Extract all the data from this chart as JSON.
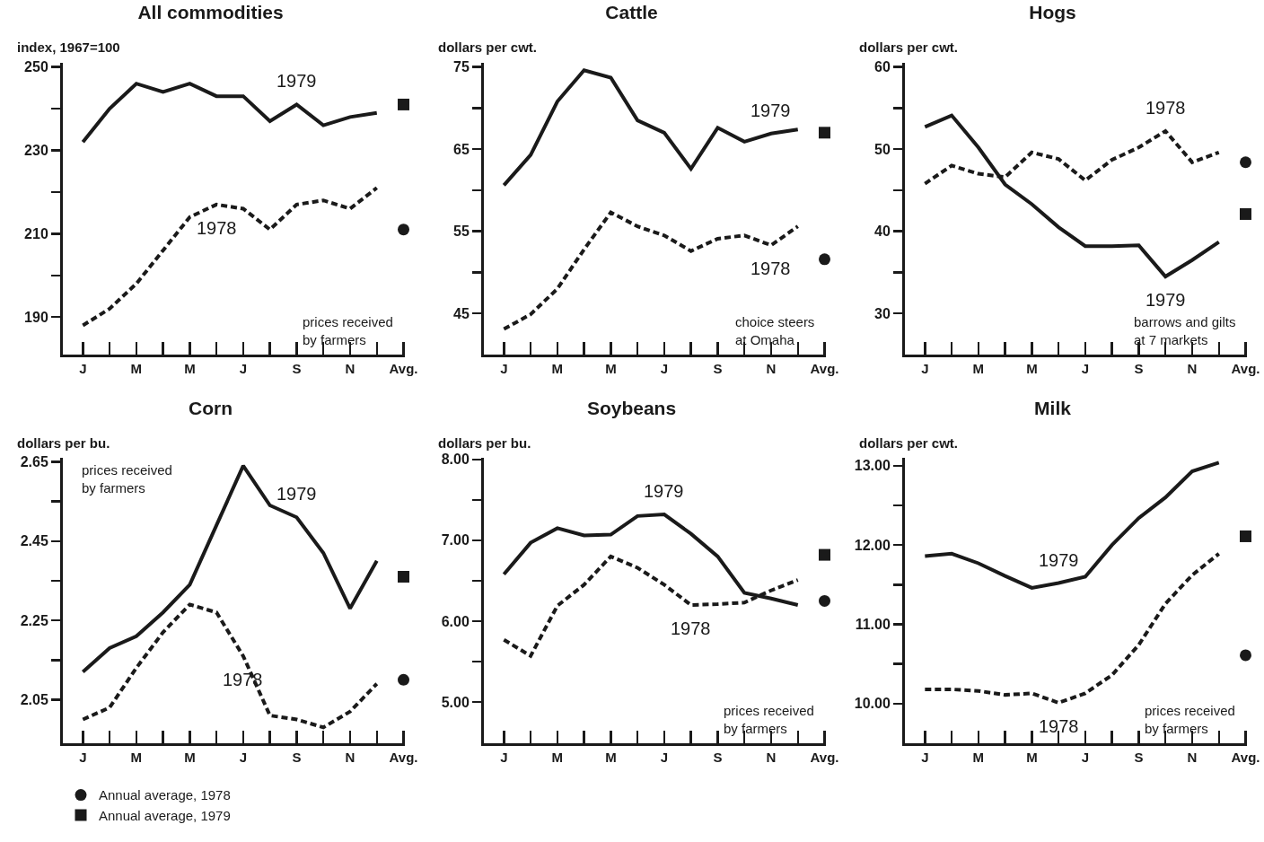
{
  "chart_data": [
    {
      "type": "line",
      "title": "All commodities",
      "ylabel": "index, 1967=100",
      "categories": [
        "J",
        null,
        "M",
        null,
        "M",
        null,
        "J",
        null,
        "S",
        null,
        "N",
        null,
        "Avg."
      ],
      "ylim": [
        181,
        251
      ],
      "yticks": [
        190,
        {
          "value": 200,
          "label": null
        },
        210,
        {
          "value": 220,
          "label": null
        },
        230,
        {
          "value": 240,
          "label": null
        },
        250
      ],
      "grid": false,
      "legend": false,
      "series": [
        {
          "name": "1979",
          "color": "#1a1a1a",
          "line_style": "solid",
          "values": [
            232,
            240,
            246,
            244,
            246,
            243,
            243,
            237,
            241,
            236,
            238,
            239,
            null
          ]
        },
        {
          "name": "1978",
          "color": "#1a1a1a",
          "line_style": "dashed",
          "values": [
            188,
            192,
            198,
            206,
            214,
            217,
            216,
            211,
            217,
            218,
            216,
            221,
            null
          ]
        },
        {
          "type": "scatter",
          "marker": "circle",
          "color": "#1a1a1a",
          "values": [
            null,
            null,
            null,
            null,
            null,
            null,
            null,
            null,
            null,
            null,
            null,
            null,
            211
          ]
        },
        {
          "type": "scatter",
          "marker": "square",
          "color": "#1a1a1a",
          "values": [
            null,
            null,
            null,
            null,
            null,
            null,
            null,
            null,
            null,
            null,
            null,
            null,
            241
          ]
        }
      ],
      "annotations": [
        "prices received\nby farmers"
      ]
    },
    {
      "type": "line",
      "title": "Cattle",
      "ylabel": "dollars per cwt.",
      "categories": [
        "J",
        null,
        "M",
        null,
        "M",
        null,
        "J",
        null,
        "S",
        null,
        "N",
        null,
        "Avg."
      ],
      "ylim": [
        40,
        75.5
      ],
      "yticks": [
        45,
        {
          "value": 50,
          "label": null
        },
        55,
        {
          "value": 60,
          "label": null
        },
        65,
        {
          "value": 70,
          "label": null
        },
        75
      ],
      "grid": false,
      "legend": false,
      "series": [
        {
          "name": "1979",
          "color": "#1a1a1a",
          "line_style": "solid",
          "values": [
            60.6,
            64.3,
            70.8,
            74.6,
            73.7,
            68.5,
            67,
            62.6,
            67.6,
            65.9,
            66.9,
            67.4,
            null
          ]
        },
        {
          "name": "1978",
          "color": "#1a1a1a",
          "line_style": "dashed",
          "values": [
            43.1,
            44.9,
            48,
            52.8,
            57.3,
            55.6,
            54.5,
            52.6,
            54.1,
            54.5,
            53.3,
            55.6,
            null
          ]
        },
        {
          "type": "scatter",
          "marker": "circle",
          "color": "#1a1a1a",
          "values": [
            null,
            null,
            null,
            null,
            null,
            null,
            null,
            null,
            null,
            null,
            null,
            null,
            51.6
          ]
        },
        {
          "type": "scatter",
          "marker": "square",
          "color": "#1a1a1a",
          "values": [
            null,
            null,
            null,
            null,
            null,
            null,
            null,
            null,
            null,
            null,
            null,
            null,
            67
          ]
        }
      ],
      "annotations": [
        "choice steers\nat Omaha"
      ]
    },
    {
      "type": "line",
      "title": "Hogs",
      "ylabel": "dollars per cwt.",
      "categories": [
        "J",
        null,
        "M",
        null,
        "M",
        null,
        "J",
        null,
        "S",
        null,
        "N",
        null,
        "Avg."
      ],
      "ylim": [
        25,
        60.5
      ],
      "yticks": [
        30,
        {
          "value": 35,
          "label": null
        },
        40,
        {
          "value": 45,
          "label": null
        },
        50,
        {
          "value": 55,
          "label": null
        },
        60
      ],
      "grid": false,
      "legend": false,
      "series": [
        {
          "name": "1979",
          "color": "#1a1a1a",
          "line_style": "solid",
          "values": [
            52.7,
            54.1,
            50.2,
            45.7,
            43.3,
            40.5,
            38.2,
            38.2,
            38.3,
            34.5,
            36.5,
            38.7,
            null
          ]
        },
        {
          "name": "1978",
          "color": "#1a1a1a",
          "line_style": "dashed",
          "values": [
            45.8,
            48,
            47,
            46.6,
            49.6,
            48.8,
            46.2,
            48.7,
            50.2,
            52.2,
            48.4,
            49.6,
            null
          ]
        },
        {
          "type": "scatter",
          "marker": "circle",
          "color": "#1a1a1a",
          "values": [
            null,
            null,
            null,
            null,
            null,
            null,
            null,
            null,
            null,
            null,
            null,
            null,
            48.4
          ]
        },
        {
          "type": "scatter",
          "marker": "square",
          "color": "#1a1a1a",
          "values": [
            null,
            null,
            null,
            null,
            null,
            null,
            null,
            null,
            null,
            null,
            null,
            null,
            42.1
          ]
        }
      ],
      "annotations": [
        "barrows and gilts\nat 7 markets"
      ]
    },
    {
      "type": "line",
      "title": "Corn",
      "ylabel": "dollars per bu.",
      "categories": [
        "J",
        null,
        "M",
        null,
        "M",
        null,
        "J",
        null,
        "S",
        null,
        "N",
        null,
        "Avg."
      ],
      "ylim": [
        1.94,
        2.66
      ],
      "yticks": [
        2.05,
        {
          "value": 2.15,
          "label": null
        },
        2.25,
        {
          "value": 2.35,
          "label": null
        },
        2.45,
        {
          "value": 2.55,
          "label": null
        },
        2.65
      ],
      "grid": false,
      "legend": "bottom left",
      "series": [
        {
          "name": "1979",
          "color": "#1a1a1a",
          "line_style": "solid",
          "values": [
            2.12,
            2.18,
            2.21,
            2.27,
            2.34,
            2.49,
            2.64,
            2.54,
            2.51,
            2.42,
            2.28,
            2.4,
            null
          ]
        },
        {
          "name": "1978",
          "color": "#1a1a1a",
          "line_style": "dashed",
          "values": [
            2.0,
            2.03,
            2.13,
            2.22,
            2.29,
            2.27,
            2.16,
            2.01,
            2.0,
            1.98,
            2.02,
            2.09,
            null
          ]
        },
        {
          "type": "scatter",
          "marker": "circle",
          "color": "#1a1a1a",
          "name": "Annual average, 1978",
          "values": [
            null,
            null,
            null,
            null,
            null,
            null,
            null,
            null,
            null,
            null,
            null,
            null,
            2.1
          ]
        },
        {
          "type": "scatter",
          "marker": "square",
          "color": "#1a1a1a",
          "name": "Annual average, 1979",
          "values": [
            null,
            null,
            null,
            null,
            null,
            null,
            null,
            null,
            null,
            null,
            null,
            null,
            2.36
          ]
        }
      ],
      "annotations": [
        "prices received\nby farmers"
      ]
    },
    {
      "type": "line",
      "title": "Soybeans",
      "ylabel": "dollars per bu.",
      "categories": [
        "J",
        null,
        "M",
        null,
        "M",
        null,
        "J",
        null,
        "S",
        null,
        "N",
        null,
        "Avg."
      ],
      "ylim": [
        4.49,
        8.02
      ],
      "yticks": [
        {
          "value": 5,
          "label": "5.00"
        },
        {
          "value": 5.5,
          "label": null
        },
        {
          "value": 6,
          "label": "6.00"
        },
        {
          "value": 6.5,
          "label": null
        },
        {
          "value": 7,
          "label": "7.00"
        },
        {
          "value": 7.5,
          "label": null
        },
        {
          "value": 8,
          "label": "8.00"
        }
      ],
      "grid": false,
      "legend": false,
      "series": [
        {
          "name": "1979",
          "color": "#1a1a1a",
          "line_style": "solid",
          "values": [
            6.58,
            6.97,
            7.15,
            7.06,
            7.07,
            7.3,
            7.32,
            7.08,
            6.8,
            6.35,
            6.28,
            6.2,
            null
          ]
        },
        {
          "name": "1978",
          "color": "#1a1a1a",
          "line_style": "dashed",
          "values": [
            5.77,
            5.57,
            6.19,
            6.45,
            6.8,
            6.66,
            6.45,
            6.2,
            6.21,
            6.23,
            6.38,
            6.51,
            null
          ]
        },
        {
          "type": "scatter",
          "marker": "circle",
          "color": "#1a1a1a",
          "values": [
            null,
            null,
            null,
            null,
            null,
            null,
            null,
            null,
            null,
            null,
            null,
            null,
            6.25
          ]
        },
        {
          "type": "scatter",
          "marker": "square",
          "color": "#1a1a1a",
          "values": [
            null,
            null,
            null,
            null,
            null,
            null,
            null,
            null,
            null,
            null,
            null,
            null,
            6.82
          ]
        }
      ],
      "annotations": [
        "prices received\nby farmers"
      ]
    },
    {
      "type": "line",
      "title": "Milk",
      "ylabel": "dollars per cwt.",
      "categories": [
        "J",
        null,
        "M",
        null,
        "M",
        null,
        "J",
        null,
        "S",
        null,
        "N",
        null,
        "Avg."
      ],
      "ylim": [
        9.5,
        13.1
      ],
      "yticks": [
        {
          "value": 10,
          "label": "10.00"
        },
        {
          "value": 10.5,
          "label": null
        },
        {
          "value": 11,
          "label": "11.00"
        },
        {
          "value": 11.5,
          "label": null
        },
        {
          "value": 12,
          "label": "12.00"
        },
        {
          "value": 12.5,
          "label": null
        },
        {
          "value": 13,
          "label": "13.00"
        }
      ],
      "grid": false,
      "legend": false,
      "series": [
        {
          "name": "1979",
          "color": "#1a1a1a",
          "line_style": "solid",
          "values": [
            11.86,
            11.89,
            11.77,
            11.61,
            11.46,
            11.52,
            11.6,
            12.0,
            12.34,
            12.6,
            12.93,
            13.04,
            null
          ]
        },
        {
          "name": "1978",
          "color": "#1a1a1a",
          "line_style": "dashed",
          "values": [
            10.18,
            10.18,
            10.16,
            10.11,
            10.13,
            10.01,
            10.13,
            10.36,
            10.74,
            11.26,
            11.62,
            11.89,
            null
          ]
        },
        {
          "type": "scatter",
          "marker": "circle",
          "color": "#1a1a1a",
          "values": [
            null,
            null,
            null,
            null,
            null,
            null,
            null,
            null,
            null,
            null,
            null,
            null,
            10.61
          ]
        },
        {
          "type": "scatter",
          "marker": "square",
          "color": "#1a1a1a",
          "values": [
            null,
            null,
            null,
            null,
            null,
            null,
            null,
            null,
            null,
            null,
            null,
            null,
            12.11
          ]
        }
      ],
      "annotations": [
        "prices received\nby farmers"
      ]
    }
  ]
}
